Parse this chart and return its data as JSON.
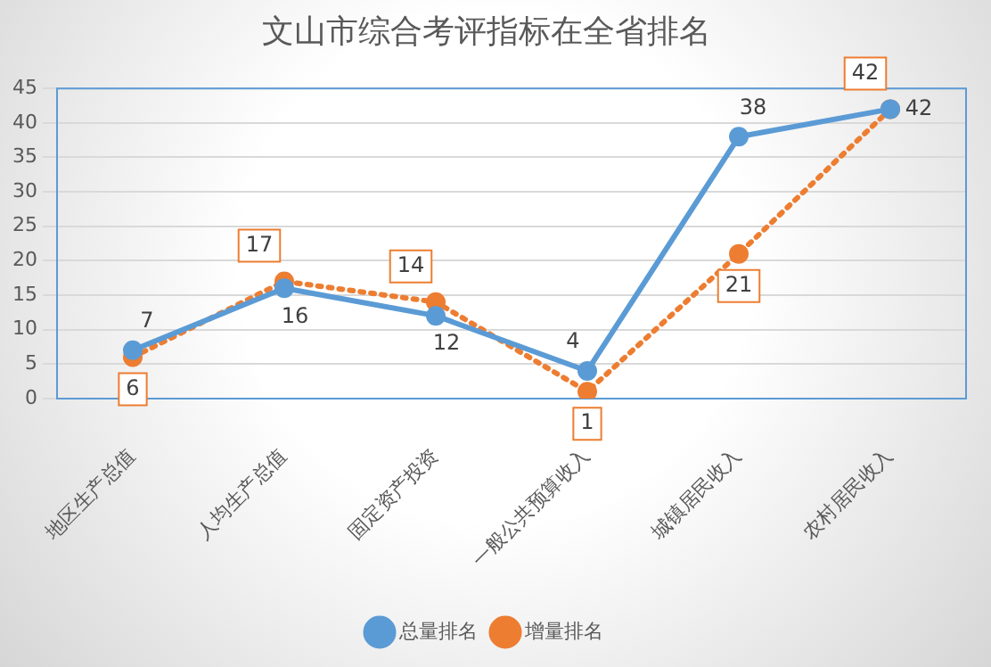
{
  "chart_data": {
    "type": "line",
    "title": "文山市综合考评指标在全省排名",
    "categories": [
      "地区生产总值",
      "人均生产总值",
      "固定资产投资",
      "一般公共预算收入",
      "城镇居民收入",
      "农村居民收入"
    ],
    "series": [
      {
        "name": "总量排名",
        "color": "#5b9bd5",
        "values": [
          7,
          16,
          12,
          4,
          38,
          42
        ],
        "line_style": "solid"
      },
      {
        "name": "增量排名",
        "color": "#ed7d31",
        "values": [
          6,
          17,
          14,
          1,
          21,
          42
        ],
        "line_style": "dotted"
      }
    ],
    "ylim": [
      0,
      45
    ],
    "yticks": [
      0,
      5,
      10,
      15,
      20,
      25,
      30,
      35,
      40,
      45
    ],
    "grid": "y",
    "legend": "bottom",
    "marker": "circle",
    "data_labels": true
  }
}
